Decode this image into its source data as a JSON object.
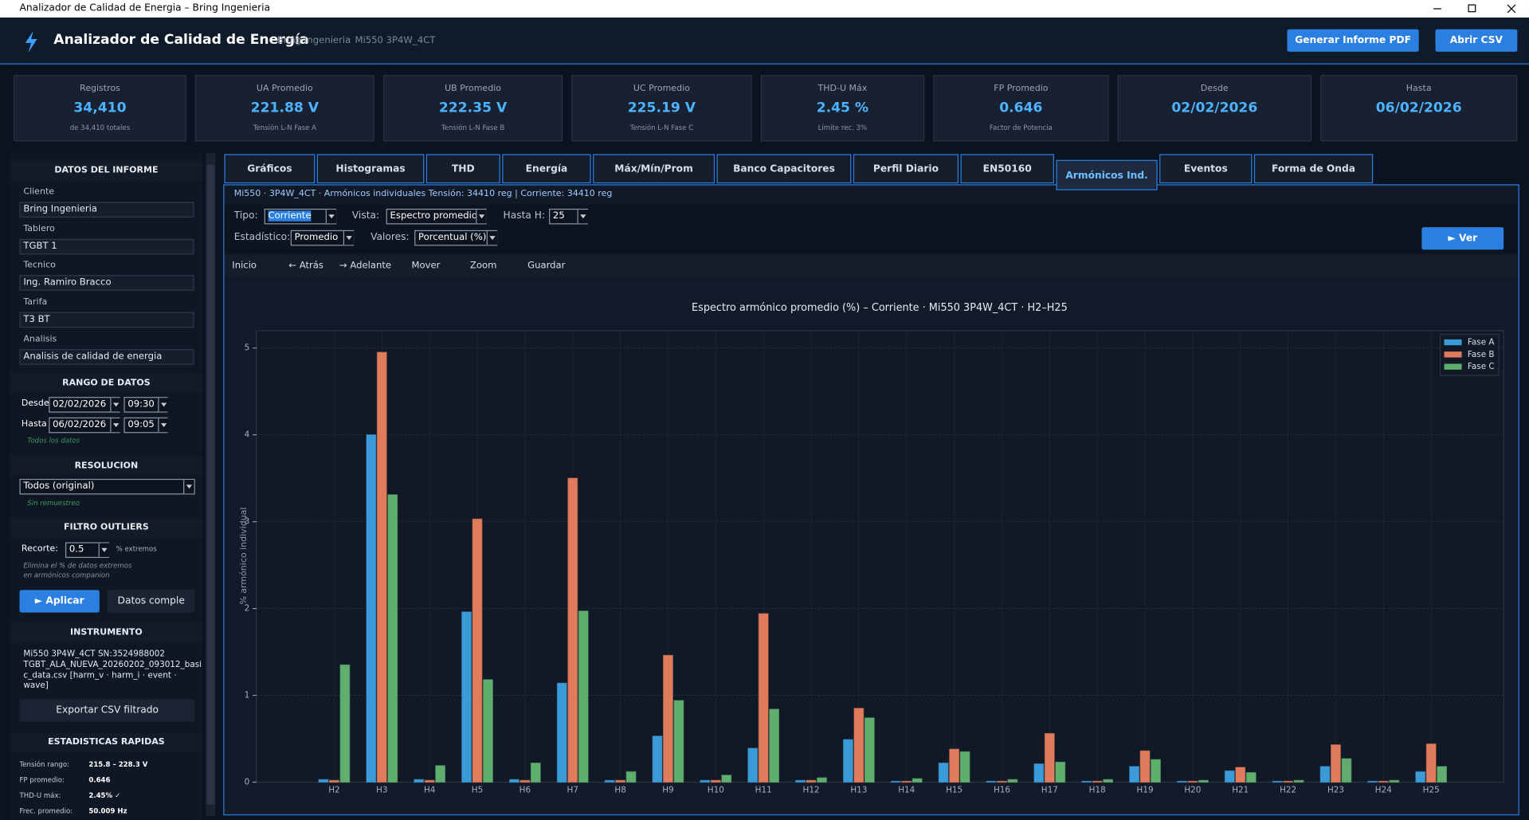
{
  "window": {
    "title": "Analizador de Calidad de Energia – Bring Ingenieria"
  },
  "header": {
    "title": "Analizador de Calidad de Energía",
    "company": "Bring Ingenieria",
    "device": "Mi550  3P4W_4CT",
    "buttons": [
      "Generar Informe PDF",
      "Abrir CSV"
    ]
  },
  "stats": [
    {
      "label": "Registros",
      "value": "34,410",
      "sub": "de 34,410 totales"
    },
    {
      "label": "UA Promedio",
      "value": "221.88 V",
      "sub": "Tensión L-N  Fase A"
    },
    {
      "label": "UB Promedio",
      "value": "222.35 V",
      "sub": "Tensión L-N  Fase B"
    },
    {
      "label": "UC Promedio",
      "value": "225.19 V",
      "sub": "Tensión L-N  Fase C"
    },
    {
      "label": "THD-U Máx",
      "value": "2.45 %",
      "sub": "Límite rec. 3%"
    },
    {
      "label": "FP Promedio",
      "value": "0.646",
      "sub": "Factor de Potencia"
    },
    {
      "label": "Desde",
      "value": "02/02/2026",
      "sub": ""
    },
    {
      "label": "Hasta",
      "value": "06/02/2026",
      "sub": ""
    }
  ],
  "sidebar": {
    "report": {
      "heading": "DATOS DEL INFORME",
      "fields": [
        {
          "label": "Cliente",
          "value": "Bring Ingenieria"
        },
        {
          "label": "Tablero",
          "value": "TGBT 1"
        },
        {
          "label": "Tecnico",
          "value": "Ing. Ramiro Bracco"
        },
        {
          "label": "Tarifa",
          "value": "T3 BT"
        },
        {
          "label": "Analisis",
          "value": "Analisis de calidad de energia"
        }
      ]
    },
    "range": {
      "heading": "RANGO DE DATOS",
      "from_label": "Desde",
      "from_date": "02/02/2026",
      "from_time": "09:30",
      "to_label": "Hasta",
      "to_date": "06/02/2026",
      "to_time": "09:05",
      "note": "Todos los datos"
    },
    "resolution": {
      "heading": "RESOLUCION",
      "value": "Todos (original)",
      "note": "Sin remuestreo"
    },
    "outliers": {
      "heading": "FILTRO OUTLIERS",
      "label": "Recorte:",
      "value": "0.5",
      "unit": "% extremos",
      "note": [
        "Elimina el % de datos extremos",
        "en armónicos companion"
      ],
      "buttons": [
        "► Aplicar",
        "Datos comple"
      ]
    },
    "instrument": {
      "heading": "INSTRUMENTO",
      "lines": [
        "Mi550  3P4W_4CT  SN:3524988002",
        "TGBT_ALA_NUEVA_20260202_093012_basi",
        "c_data.csv  [harm_v · harm_i · event ·",
        "wave]"
      ],
      "button": "Exportar CSV filtrado"
    },
    "quick_stats": {
      "heading": "ESTADISTICAS RAPIDAS",
      "rows": [
        {
          "label": "Tensión rango:",
          "value": "215.8 – 228.3 V"
        },
        {
          "label": "FP promedio:",
          "value": "0.646"
        },
        {
          "label": "THD-U máx:",
          "value": "2.45% ✓"
        },
        {
          "label": "Frec. promedio:",
          "value": "50.009 Hz"
        }
      ]
    }
  },
  "tabs": [
    "Gráficos",
    "Histogramas",
    "THD",
    "Energía",
    "Máx/Mín/Prom",
    "Banco Capacitores",
    "Perfil Diario",
    "EN50160",
    "Armónicos Ind.",
    "Eventos",
    "Forma de Onda"
  ],
  "panel": {
    "info": "Mi550  ·  3P4W_4CT  ·  Armónicos individuales  Tensión: 34410 reg  |  Corriente: 34410 reg",
    "controls": {
      "tipo_label": "Tipo:",
      "tipo": "Corriente",
      "vista_label": "Vista:",
      "vista": "Espectro promedio",
      "hasta_label": "Hasta H:",
      "hasta": "25",
      "estadistico_label": "Estadístico:",
      "estadistico": "Promedio",
      "valores_label": "Valores:",
      "valores": "Porcentual (%)",
      "button": "► Ver"
    },
    "toolbar": [
      "Inicio",
      "← Atrás",
      "→ Adelante",
      "Mover",
      "Zoom",
      "Guardar"
    ]
  },
  "chart_data": {
    "type": "bar",
    "title": "Espectro armónico promedio (%) – Corriente  ·  Mi550 3P4W_4CT  ·  H2–H25",
    "y_label": "% armónico individual",
    "categories": [
      "H2",
      "H3",
      "H4",
      "H5",
      "H6",
      "H7",
      "H8",
      "H9",
      "H10",
      "H11",
      "H12",
      "H13",
      "H14",
      "H15",
      "H16",
      "H17",
      "H18",
      "H19",
      "H20",
      "H21",
      "H22",
      "H23",
      "H24",
      "H25"
    ],
    "series": [
      {
        "name": "Fase A",
        "color": "#3b9ad8",
        "values": [
          0.03,
          4.0,
          0.03,
          1.96,
          0.03,
          1.14,
          0.02,
          0.53,
          0.02,
          0.39,
          0.02,
          0.49,
          0.01,
          0.22,
          0.01,
          0.21,
          0.01,
          0.18,
          0.01,
          0.13,
          0.01,
          0.18,
          0.01,
          0.12
        ]
      },
      {
        "name": "Fase B",
        "color": "#e07b5b",
        "values": [
          0.02,
          4.95,
          0.02,
          3.03,
          0.02,
          3.5,
          0.02,
          1.46,
          0.02,
          1.94,
          0.02,
          0.85,
          0.01,
          0.38,
          0.01,
          0.56,
          0.01,
          0.36,
          0.01,
          0.17,
          0.01,
          0.43,
          0.01,
          0.44
        ]
      },
      {
        "name": "Fase C",
        "color": "#5fae6e",
        "values": [
          1.35,
          3.31,
          0.19,
          1.18,
          0.22,
          1.97,
          0.12,
          0.94,
          0.08,
          0.84,
          0.05,
          0.74,
          0.04,
          0.35,
          0.03,
          0.23,
          0.03,
          0.26,
          0.02,
          0.11,
          0.02,
          0.27,
          0.02,
          0.18
        ]
      }
    ],
    "ylim": [
      0,
      5.2
    ],
    "yticks": [
      0,
      1,
      2,
      3,
      4,
      5
    ],
    "grid": true,
    "legend": "upper right"
  }
}
